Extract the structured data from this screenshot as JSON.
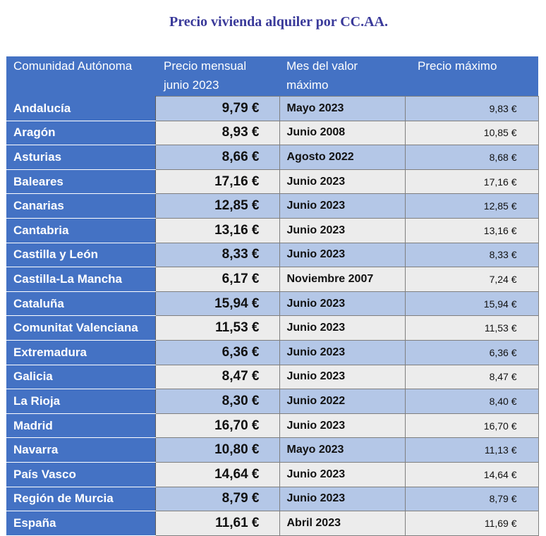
{
  "title": "Precio vivienda alquiler  por CC.AA.",
  "table": {
    "headers": {
      "region": "Comunidad Autónoma",
      "price_line1": "Precio mensual",
      "price_line2": "junio 2023",
      "month_line1": "Mes del valor",
      "month_line2": "máximo",
      "max": "Precio máximo"
    },
    "rows": [
      {
        "region": "Andalucía",
        "price": "9,79 €",
        "month": "Mayo 2023",
        "max": "9,83 €"
      },
      {
        "region": "Aragón",
        "price": "8,93 €",
        "month": "Junio 2008",
        "max": "10,85 €"
      },
      {
        "region": "Asturias",
        "price": "8,66 €",
        "month": "Agosto 2022",
        "max": "8,68 €"
      },
      {
        "region": "Baleares",
        "price": "17,16 €",
        "month": "Junio 2023",
        "max": "17,16 €"
      },
      {
        "region": "Canarias",
        "price": "12,85 €",
        "month": "Junio 2023",
        "max": "12,85 €"
      },
      {
        "region": "Cantabria",
        "price": "13,16 €",
        "month": "Junio 2023",
        "max": "13,16 €"
      },
      {
        "region": "Castilla y León",
        "price": "8,33 €",
        "month": "Junio 2023",
        "max": "8,33 €"
      },
      {
        "region": "Castilla-La Mancha",
        "price": "6,17 €",
        "month": "Noviembre 2007",
        "max": "7,24 €"
      },
      {
        "region": "Cataluña",
        "price": "15,94 €",
        "month": "Junio 2023",
        "max": "15,94 €"
      },
      {
        "region": "Comunitat Valenciana",
        "price": "11,53 €",
        "month": "Junio 2023",
        "max": "11,53 €"
      },
      {
        "region": "Extremadura",
        "price": "6,36 €",
        "month": "Junio 2023",
        "max": "6,36 €"
      },
      {
        "region": "Galicia",
        "price": "8,47 €",
        "month": "Junio 2023",
        "max": "8,47 €"
      },
      {
        "region": "La Rioja",
        "price": "8,30 €",
        "month": "Junio 2022",
        "max": "8,40 €"
      },
      {
        "region": "Madrid",
        "price": "16,70 €",
        "month": "Junio 2023",
        "max": "16,70 €"
      },
      {
        "region": "Navarra",
        "price": "10,80 €",
        "month": "Mayo 2023",
        "max": "11,13 €"
      },
      {
        "region": "País Vasco",
        "price": "14,64 €",
        "month": "Junio 2023",
        "max": "14,64 €"
      },
      {
        "region": "Región de Murcia",
        "price": "8,79 €",
        "month": "Junio 2023",
        "max": "8,79 €"
      },
      {
        "region": "España",
        "price": "11,61 €",
        "month": "Abril 2023",
        "max": "11,69 €"
      }
    ]
  },
  "colors": {
    "header_bg": "#4472c4",
    "title": "#3a3a9a",
    "row_alt_blue": "#b4c7e7",
    "row_alt_gray": "#ececec"
  }
}
